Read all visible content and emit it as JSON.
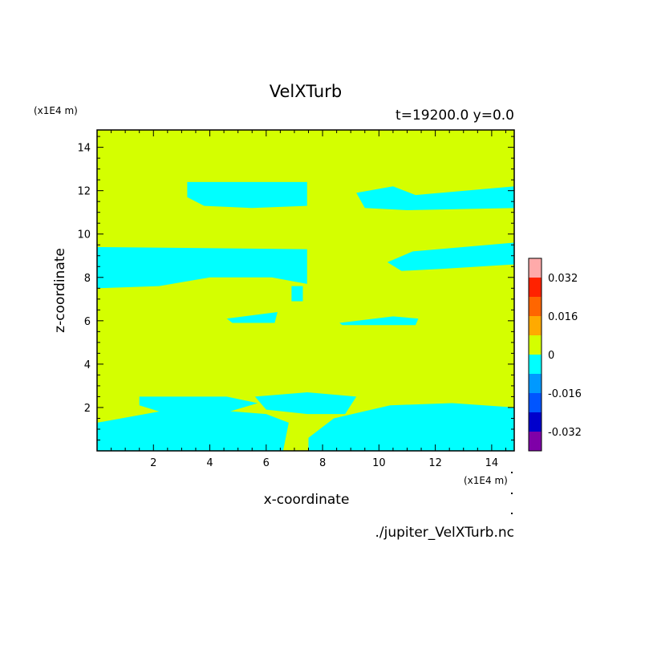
{
  "chart_data": {
    "type": "heatmap",
    "title": "VelXTurb",
    "subtitle": "t=19200.0 y=0.0",
    "xlabel": "x-coordinate",
    "ylabel": "z-coordinate",
    "x_unit": "(x1E4 m)",
    "y_unit": "(x1E4 m)",
    "xlim": [
      0,
      14.8
    ],
    "ylim": [
      0,
      14.8
    ],
    "x_ticks": [
      2,
      4,
      6,
      8,
      10,
      12,
      14
    ],
    "y_ticks": [
      2,
      4,
      6,
      8,
      10,
      12,
      14
    ],
    "source_label": "./jupiter_VelXTurb.nc",
    "colorbar": {
      "tick_labels": [
        "0.032",
        "0.016",
        "0",
        "-0.016",
        "-0.032"
      ],
      "tick_values": [
        0.032,
        0.016,
        0,
        -0.016,
        -0.032
      ],
      "levels": [
        {
          "range": [
            -0.04,
            -0.032
          ],
          "color": "#7f00a8"
        },
        {
          "range": [
            -0.032,
            -0.024
          ],
          "color": "#0000cc"
        },
        {
          "range": [
            -0.024,
            -0.016
          ],
          "color": "#0055ff"
        },
        {
          "range": [
            -0.016,
            -0.008
          ],
          "color": "#0099ff"
        },
        {
          "range": [
            -0.008,
            0
          ],
          "color": "#00ffff"
        },
        {
          "range": [
            0,
            0.008
          ],
          "color": "#d4ff00"
        },
        {
          "range": [
            0.008,
            0.016
          ],
          "color": "#ffaa00"
        },
        {
          "range": [
            0.016,
            0.024
          ],
          "color": "#ff6600"
        },
        {
          "range": [
            0.024,
            0.032
          ],
          "color": "#ff2200"
        },
        {
          "range": [
            0.032,
            0.04
          ],
          "color": "#ffaaaa"
        }
      ]
    },
    "background_value_range": [
      0,
      0.008
    ],
    "negative_regions": [
      {
        "value_range": [
          -0.008,
          0
        ],
        "points": [
          [
            3.2,
            12.4
          ],
          [
            7.45,
            12.4
          ],
          [
            7.45,
            11.3
          ],
          [
            5.5,
            11.2
          ],
          [
            3.8,
            11.3
          ],
          [
            3.2,
            11.7
          ]
        ]
      },
      {
        "value_range": [
          -0.008,
          0
        ],
        "points": [
          [
            9.2,
            11.9
          ],
          [
            10.5,
            12.2
          ],
          [
            11.3,
            11.8
          ],
          [
            14.8,
            12.2
          ],
          [
            14.8,
            11.2
          ],
          [
            11.0,
            11.1
          ],
          [
            9.5,
            11.2
          ]
        ]
      },
      {
        "value_range": [
          -0.008,
          0
        ],
        "points": [
          [
            0,
            9.4
          ],
          [
            7.45,
            9.3
          ],
          [
            7.45,
            7.7
          ],
          [
            6.2,
            8.0
          ],
          [
            4.0,
            8.0
          ],
          [
            2.2,
            7.6
          ],
          [
            0,
            7.5
          ]
        ]
      },
      {
        "value_range": [
          -0.008,
          0
        ],
        "points": [
          [
            10.3,
            8.7
          ],
          [
            11.2,
            9.2
          ],
          [
            14.8,
            9.6
          ],
          [
            14.8,
            8.6
          ],
          [
            12.3,
            8.4
          ],
          [
            10.8,
            8.3
          ]
        ]
      },
      {
        "value_range": [
          -0.008,
          0
        ],
        "points": [
          [
            6.9,
            7.6
          ],
          [
            7.3,
            7.6
          ],
          [
            7.3,
            6.9
          ],
          [
            6.9,
            6.9
          ]
        ]
      },
      {
        "value_range": [
          -0.008,
          0
        ],
        "points": [
          [
            4.6,
            6.1
          ],
          [
            6.4,
            6.4
          ],
          [
            6.3,
            5.9
          ],
          [
            4.8,
            5.9
          ]
        ]
      },
      {
        "value_range": [
          -0.008,
          0
        ],
        "points": [
          [
            8.6,
            5.9
          ],
          [
            10.5,
            6.2
          ],
          [
            11.4,
            6.1
          ],
          [
            11.3,
            5.8
          ],
          [
            8.7,
            5.8
          ]
        ]
      },
      {
        "value_range": [
          -0.008,
          0
        ],
        "points": [
          [
            0,
            1.3
          ],
          [
            3.0,
            2.0
          ],
          [
            6.0,
            1.7
          ],
          [
            6.8,
            1.3
          ],
          [
            6.6,
            0.0
          ],
          [
            0,
            0.0
          ]
        ]
      },
      {
        "value_range": [
          -0.008,
          0
        ],
        "points": [
          [
            7.5,
            0.6
          ],
          [
            8.4,
            1.5
          ],
          [
            10.4,
            2.1
          ],
          [
            12.6,
            2.2
          ],
          [
            14.8,
            2.0
          ],
          [
            14.8,
            0.0
          ],
          [
            7.5,
            0.0
          ]
        ]
      },
      {
        "value_range": [
          -0.008,
          0
        ],
        "points": [
          [
            5.6,
            2.5
          ],
          [
            7.45,
            2.7
          ],
          [
            9.2,
            2.5
          ],
          [
            8.8,
            1.7
          ],
          [
            7.45,
            1.7
          ],
          [
            6.0,
            1.9
          ]
        ]
      },
      {
        "value_range": [
          -0.008,
          0
        ],
        "points": [
          [
            1.5,
            2.5
          ],
          [
            4.6,
            2.5
          ],
          [
            5.7,
            2.2
          ],
          [
            4.4,
            1.7
          ],
          [
            2.5,
            1.7
          ],
          [
            1.5,
            2.1
          ]
        ]
      }
    ]
  }
}
